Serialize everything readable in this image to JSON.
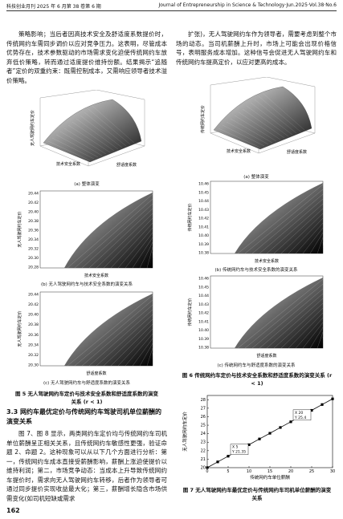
{
  "header": {
    "journal_cn": "科技创业月刊 2025 年 6 月第 38 卷第 6 期",
    "journal_en": "Journal of Entrepreneurship in Science & Technology·Jun.2025·Vol.38·No.6"
  },
  "left_column": {
    "paragraph_1": "策略影响；当后者因高技术安全及舒适度系数提价时，传统网约车需同步调价以应对竞争压力。这表明，尽管成本优势存在，技术参数驱动的市场需求变化迫使传统网约车放弃低价策略，转而通过适度提价维持份额。结果揭示“追随者”定价的双重约束：既需控制成本，又需响应领导者技术溢价策略。",
    "figure_5": {
      "subfigures": [
        {
          "caption": "(a) 整体演变",
          "xlabel": "技术安全系数",
          "ylabel": "舒适度系数",
          "zlabel": "无人驾驶网约车定价"
        },
        {
          "caption": "(b) 无人驾驶网约车与技术安全系数的演变关系",
          "xlabel": "技术安全系数",
          "ylabel": "无人驾驶网约车定价",
          "yticks": [
            "20.44",
            "20.42",
            "20.40",
            "20.38",
            "20.36",
            "20.34",
            "20.32",
            "20.30",
            "20.28"
          ]
        },
        {
          "caption": "(c) 无人驾驶网约车与舒适度系数的演变关系",
          "xlabel": "舒适度系数",
          "ylabel": "无人驾驶网约车定价",
          "yticks": [
            "20.44",
            "20.42",
            "20.40",
            "20.38",
            "20.36",
            "20.34",
            "20.32",
            "20.30"
          ]
        }
      ],
      "caption": "图 5 无人驾驶网约车定价与技术安全系数和舒适度系数的演变关系 (r < 1)"
    },
    "section": {
      "number": "3.3",
      "title": "网约车最优定价与传统网约车驾驶司机单位薪酬的演变关系"
    },
    "paragraph_2": "图 7、图 8 显示，两类网约车定价均与传统网约车司机单位薪酬呈正相关关系，且传统网约车敏感性更强，验证命题 2、命题 2。这种现象可以从以下几个方面进行分析：第一，传统网约车成本直接受薪酬影响，薪酬上涨迫使提价以维持利润；第二，市场竞争动态：当成本上升导致传统网约车提价时，需求向无人驾驶网约车转移，后者作为领导者可通过同步提价实现收益最大化；第三，薪酬增长隐含市场供需变化(如司机短缺或需求"
  },
  "right_column": {
    "paragraph_1": "扩张)，无人驾驶网约车作为领导者，需要考虑到整个市场的动态。当司机薪酬上升时，市场上可能会出现价格信号，表明服务成本增加。这种信号会促进无人驾驶网约车和传统网约车提高定价，以应对更高的成本。",
    "figure_6": {
      "subfigures": [
        {
          "caption": "(a) 整体演变",
          "xlabel": "技术安全系数",
          "ylabel": "舒适度系数",
          "zlabel": "传统网约车定价"
        },
        {
          "caption": "(b) 传统网约车与技术安全系数的演变关系",
          "xlabel": "技术安全系数",
          "ylabel": "传统网约车定价",
          "yticks": [
            "10.46",
            "10.45",
            "10.44",
            "10.43",
            "10.42",
            "10.41",
            "10.40",
            "10.39",
            "10.38"
          ]
        },
        {
          "caption": "(c) 传统网约车与舒适度系数的演变关系",
          "xlabel": "舒适度系数",
          "ylabel": "传统网约车定价",
          "yticks": [
            "10.46",
            "10.45",
            "10.44",
            "10.43",
            "10.42",
            "10.41",
            "10.40",
            "10.39",
            "10.38"
          ]
        }
      ],
      "caption": "图 6 传统网约车定价与技术安全系数和舒适度系数的演变关系 (r < 1)"
    },
    "figure_7": {
      "chart": {
        "type": "line",
        "xlabel": "传统网约车单位薪酬",
        "ylabel": "无人驾驶网约车定价",
        "x": [
          0,
          2.5,
          5,
          7.5,
          10,
          12.5,
          15,
          17.5,
          20,
          22.5,
          25,
          27.5,
          30
        ],
        "values": [
          20,
          20.68,
          21.35,
          22.03,
          22.7,
          23.38,
          24.05,
          24.73,
          25.4,
          26.08,
          26.75,
          27.43,
          28.1
        ],
        "color": "#000000",
        "xlim": [
          0,
          30
        ],
        "ylim": [
          20,
          28.5
        ],
        "xticks": [
          0,
          5,
          10,
          15,
          20,
          25,
          30
        ],
        "yticks": [
          20,
          21,
          22,
          23,
          24,
          25,
          26,
          27,
          28
        ],
        "annotations": [
          {
            "index": 2,
            "lines": [
              "X 5",
              "Y 21.35"
            ]
          },
          {
            "index": 8,
            "lines": [
              "X 20",
              "Y 25.4"
            ]
          }
        ]
      },
      "caption": "图 7 无人驾驶网约车最优定价与传统网约车司机单位薪酬的演变关系"
    }
  },
  "page_number": "162"
}
